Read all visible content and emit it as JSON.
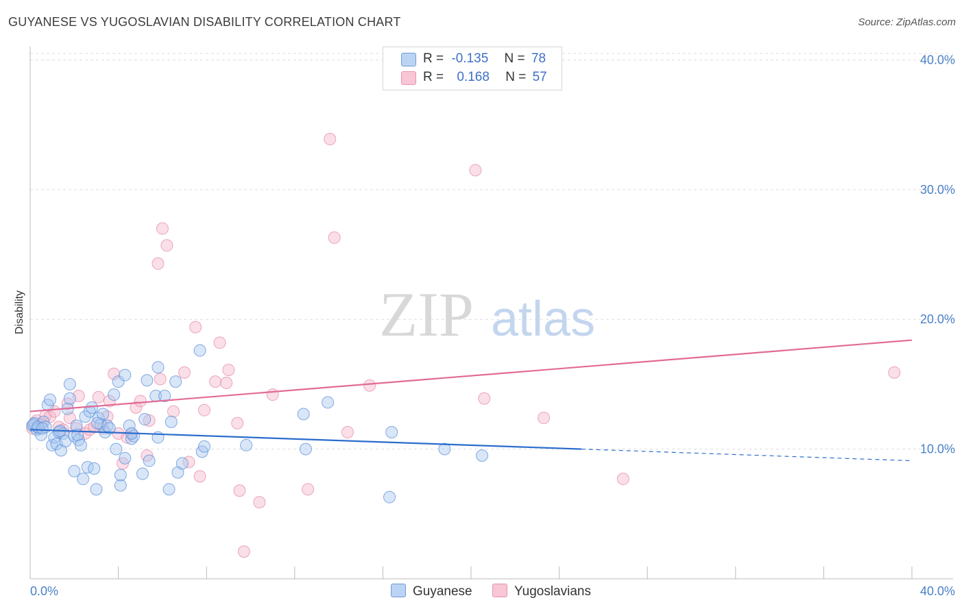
{
  "title": "GUYANESE VS YUGOSLAVIAN DISABILITY CORRELATION CHART",
  "source": "Source: ZipAtlas.com",
  "watermark": {
    "zip": "ZIP",
    "atlas": "atlas"
  },
  "legend": {
    "guyanese": {
      "r_label": "R =",
      "r_value": "-0.135",
      "n_label": "N =",
      "n_value": "78"
    },
    "yugoslavians": {
      "r_label": "R =",
      "r_value": "0.168",
      "n_label": "N =",
      "n_value": "57"
    }
  },
  "colors": {
    "guyanese_fill": "#a9c8f0",
    "guyanese_stroke": "#5b8fd8",
    "guyanese_line": "#2a6ccc",
    "yugoslavians_fill": "#f5b8cb",
    "yugoslavians_stroke": "#e58aa8",
    "yugoslavians_line": "#e26a94",
    "tick": "#4a80c8"
  },
  "chart_data": {
    "type": "scatter",
    "title": "GUYANESE VS YUGOSLAVIAN DISABILITY CORRELATION CHART",
    "xlabel": "",
    "ylabel": "Disability",
    "xlim": [
      0,
      40
    ],
    "ylim": [
      0,
      40.5
    ],
    "x_tick_labels": [
      "0.0%",
      "40.0%"
    ],
    "y_ticks": [
      10,
      20,
      30,
      40
    ],
    "y_tick_labels": [
      "10.0%",
      "20.0%",
      "30.0%",
      "40.0%"
    ],
    "grid": true,
    "legend_position": "top-center",
    "bottom_legend": [
      "Guyanese",
      "Yugoslavians"
    ],
    "series": [
      {
        "name": "Guyanese",
        "trend": {
          "x": [
            0,
            25
          ],
          "y": [
            11.5,
            10.0
          ],
          "dashed_to": [
            40,
            9.1
          ]
        },
        "points": [
          [
            0.1,
            11.8
          ],
          [
            0.2,
            12.0
          ],
          [
            0.3,
            11.5
          ],
          [
            0.4,
            11.6
          ],
          [
            0.5,
            11.1
          ],
          [
            0.6,
            12.1
          ],
          [
            0.7,
            11.7
          ],
          [
            0.8,
            13.4
          ],
          [
            0.9,
            13.8
          ],
          [
            1.0,
            10.3
          ],
          [
            1.1,
            10.9
          ],
          [
            1.2,
            10.4
          ],
          [
            1.3,
            11.3
          ],
          [
            1.4,
            9.9
          ],
          [
            1.5,
            11.2
          ],
          [
            1.6,
            10.6
          ],
          [
            1.7,
            13.1
          ],
          [
            1.8,
            13.9
          ],
          [
            1.8,
            15.0
          ],
          [
            2.0,
            11.0
          ],
          [
            2.1,
            11.8
          ],
          [
            2.0,
            8.3
          ],
          [
            2.2,
            10.7
          ],
          [
            2.3,
            10.3
          ],
          [
            2.4,
            7.7
          ],
          [
            2.5,
            12.5
          ],
          [
            2.6,
            8.6
          ],
          [
            2.7,
            12.9
          ],
          [
            2.8,
            13.2
          ],
          [
            2.9,
            8.5
          ],
          [
            3.0,
            6.9
          ],
          [
            3.1,
            12.4
          ],
          [
            3.2,
            11.9
          ],
          [
            3.3,
            12.7
          ],
          [
            3.4,
            11.3
          ],
          [
            3.5,
            11.8
          ],
          [
            3.8,
            14.2
          ],
          [
            3.9,
            10.0
          ],
          [
            4.0,
            15.2
          ],
          [
            4.1,
            7.2
          ],
          [
            4.1,
            8.0
          ],
          [
            4.3,
            15.7
          ],
          [
            4.3,
            9.3
          ],
          [
            4.5,
            11.8
          ],
          [
            4.6,
            10.8
          ],
          [
            4.7,
            11.0
          ],
          [
            5.1,
            8.1
          ],
          [
            5.2,
            12.3
          ],
          [
            5.3,
            15.3
          ],
          [
            5.4,
            9.1
          ],
          [
            5.7,
            14.1
          ],
          [
            5.8,
            16.3
          ],
          [
            5.8,
            10.9
          ],
          [
            6.1,
            14.1
          ],
          [
            6.3,
            6.9
          ],
          [
            6.4,
            12.1
          ],
          [
            6.6,
            15.2
          ],
          [
            6.7,
            8.2
          ],
          [
            6.9,
            8.9
          ],
          [
            7.7,
            17.6
          ],
          [
            7.8,
            9.8
          ],
          [
            7.9,
            10.2
          ],
          [
            9.8,
            10.3
          ],
          [
            12.4,
            12.7
          ],
          [
            12.5,
            10.0
          ],
          [
            13.5,
            13.6
          ],
          [
            16.3,
            6.3
          ],
          [
            16.4,
            11.3
          ],
          [
            18.8,
            10.0
          ],
          [
            20.5,
            9.5
          ],
          [
            0.15,
            11.9
          ],
          [
            0.35,
            11.7
          ],
          [
            0.55,
            11.6
          ],
          [
            3.6,
            11.6
          ],
          [
            1.35,
            11.4
          ],
          [
            2.15,
            11.1
          ],
          [
            4.6,
            11.2
          ],
          [
            3.05,
            12.0
          ]
        ]
      },
      {
        "name": "Yugoslavians",
        "trend": {
          "x": [
            0,
            40
          ],
          "y": [
            12.9,
            18.4
          ]
        },
        "points": [
          [
            0.1,
            11.6
          ],
          [
            0.3,
            12.2
          ],
          [
            0.5,
            11.9
          ],
          [
            0.7,
            12.6
          ],
          [
            0.9,
            12.5
          ],
          [
            1.1,
            12.9
          ],
          [
            1.3,
            11.7
          ],
          [
            1.5,
            11.5
          ],
          [
            1.7,
            13.5
          ],
          [
            1.8,
            12.4
          ],
          [
            2.1,
            11.6
          ],
          [
            2.2,
            14.1
          ],
          [
            2.5,
            11.2
          ],
          [
            2.7,
            11.5
          ],
          [
            2.9,
            11.7
          ],
          [
            3.1,
            14.0
          ],
          [
            3.3,
            11.6
          ],
          [
            3.5,
            12.5
          ],
          [
            3.6,
            13.7
          ],
          [
            3.8,
            15.8
          ],
          [
            4.0,
            11.2
          ],
          [
            4.2,
            8.9
          ],
          [
            4.4,
            10.9
          ],
          [
            4.6,
            11.2
          ],
          [
            4.8,
            13.2
          ],
          [
            5.0,
            13.7
          ],
          [
            5.3,
            9.5
          ],
          [
            5.4,
            12.2
          ],
          [
            5.8,
            24.3
          ],
          [
            5.9,
            15.4
          ],
          [
            6.0,
            27.0
          ],
          [
            6.2,
            25.7
          ],
          [
            6.5,
            12.9
          ],
          [
            7.0,
            15.9
          ],
          [
            7.2,
            9.0
          ],
          [
            7.5,
            19.4
          ],
          [
            7.7,
            7.9
          ],
          [
            7.9,
            13.0
          ],
          [
            8.4,
            15.2
          ],
          [
            8.6,
            18.2
          ],
          [
            8.9,
            15.1
          ],
          [
            9.0,
            16.1
          ],
          [
            9.4,
            12.0
          ],
          [
            9.5,
            6.8
          ],
          [
            9.7,
            2.1
          ],
          [
            10.4,
            5.9
          ],
          [
            11.0,
            14.2
          ],
          [
            12.6,
            6.9
          ],
          [
            13.6,
            33.9
          ],
          [
            13.8,
            26.3
          ],
          [
            14.4,
            11.3
          ],
          [
            15.4,
            14.9
          ],
          [
            20.2,
            31.5
          ],
          [
            20.6,
            13.9
          ],
          [
            23.3,
            12.4
          ],
          [
            26.9,
            7.7
          ],
          [
            39.2,
            15.9
          ]
        ]
      }
    ]
  }
}
